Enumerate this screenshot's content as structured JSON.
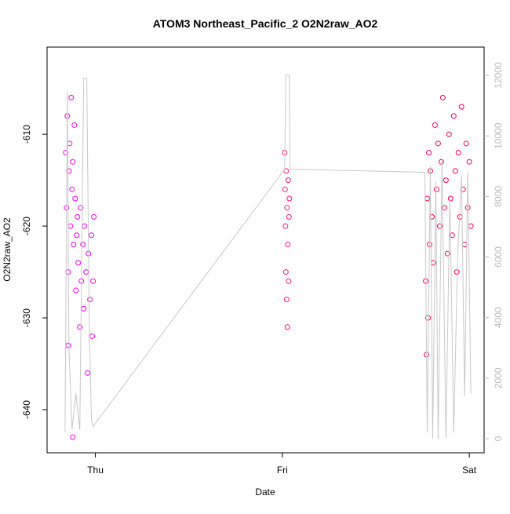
{
  "chart_data": {
    "type": "scatter",
    "title": "ATOM3 Northeast_Pacific_2 O2N2raw_AO2",
    "x_label": "Date",
    "y_label": "O2N2raw_AO2",
    "xlim": [
      -6.2,
      49.9
    ],
    "xticks": [
      {
        "value": 0,
        "label": "Thu"
      },
      {
        "value": 24,
        "label": "Fri"
      },
      {
        "value": 48,
        "label": "Sat"
      }
    ],
    "ylim": [
      -644.7,
      -600.5
    ],
    "yticks": [
      -640,
      -630,
      -620,
      -610
    ],
    "y2lim": [
      -467,
      12934
    ],
    "y2ticks": [
      0,
      2000,
      4000,
      6000,
      8000,
      10000,
      12000
    ],
    "series": [
      {
        "color": "#ff00ee",
        "x": [
          -3.8,
          -3.7,
          -3.6,
          -3.5,
          -3.5,
          -3.4,
          -3.3,
          -3.2,
          -3.1,
          -3.0,
          -2.9,
          -2.9,
          -2.8,
          -2.7,
          -2.6,
          -2.5,
          -2.4,
          -2.3,
          -2.2,
          -2.0,
          -1.9,
          -1.8,
          -1.6,
          -1.5,
          -1.4,
          -1.2,
          -1.0,
          -0.9,
          -0.7,
          -0.5,
          -0.4,
          -0.3,
          -0.2
        ],
        "values": [
          -612,
          -618,
          -608,
          -625,
          -633,
          -614,
          -611,
          -620,
          -606,
          -616,
          -643,
          -613,
          -622,
          -609,
          -617,
          -627,
          -621,
          -619,
          -624,
          -631,
          -618,
          -626,
          -622,
          -629,
          -620,
          -625,
          -636,
          -623,
          -628,
          -621,
          -632,
          -626,
          -619
        ]
      },
      {
        "color": "#ff1a80",
        "x": [
          24.3,
          24.35,
          24.4,
          24.45,
          24.5,
          24.55,
          24.6,
          24.65,
          24.7,
          24.75,
          24.8,
          24.85,
          24.9
        ],
        "values": [
          -612,
          -616,
          -620,
          -625,
          -614,
          -628,
          -618,
          -631,
          -622,
          -615,
          -626,
          -619,
          -617
        ]
      },
      {
        "color": "#ff0055",
        "x": [
          42.4,
          42.5,
          42.6,
          42.7,
          42.8,
          42.9,
          43.0,
          43.2,
          43.4,
          43.6,
          43.8,
          44.0,
          44.2,
          44.4,
          44.6,
          44.8,
          45.0,
          45.2,
          45.4,
          45.6,
          45.8,
          46.0,
          46.2,
          46.4,
          46.6,
          46.8,
          47.0,
          47.2,
          47.4,
          47.6,
          47.8,
          48.0,
          48.2
        ],
        "values": [
          -626,
          -634,
          -617,
          -630,
          -612,
          -622,
          -614,
          -619,
          -624,
          -609,
          -616,
          -611,
          -620,
          -613,
          -606,
          -618,
          -615,
          -623,
          -610,
          -617,
          -621,
          -608,
          -614,
          -625,
          -612,
          -619,
          -607,
          -616,
          -622,
          -611,
          -618,
          -613,
          -620
        ]
      },
      {
        "type": "line",
        "axis": "y2",
        "color": "#c8c8c8",
        "x": [
          -3.9,
          -3.6,
          -3.4,
          -3.0,
          -2.5,
          -2.0,
          -1.5,
          -1.1,
          -0.8,
          -0.5,
          -0.3,
          24.3,
          24.45,
          24.9,
          25.0,
          42.3,
          42.6,
          43.0,
          43.3,
          43.7,
          44.0,
          44.5,
          45.0,
          45.5,
          46.0,
          46.5,
          47.0,
          47.4,
          47.8,
          48.2
        ],
        "values": [
          200,
          11500,
          3000,
          300,
          1500,
          300,
          11900,
          11900,
          4000,
          600,
          400,
          8900,
          12000,
          12000,
          8900,
          8800,
          200,
          9000,
          0,
          8500,
          0,
          9200,
          0,
          8000,
          200,
          6000,
          8700,
          1400,
          8800,
          1500
        ]
      }
    ]
  }
}
